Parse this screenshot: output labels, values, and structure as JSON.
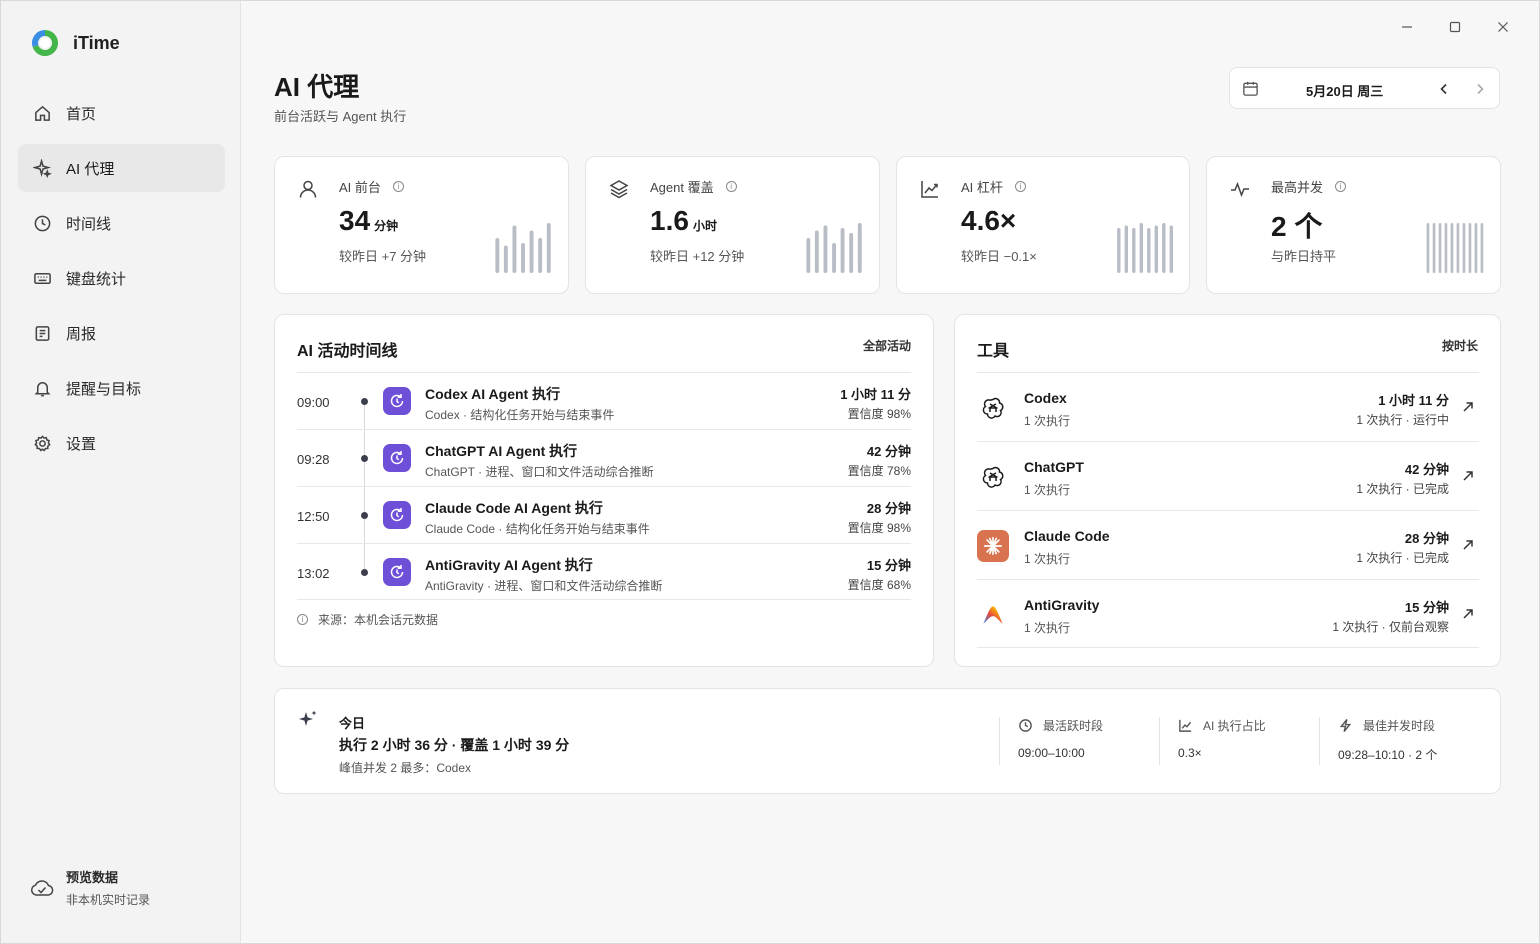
{
  "app": {
    "name": "iTime"
  },
  "sidebar": {
    "items": [
      {
        "label": "首页",
        "icon": "home-icon"
      },
      {
        "label": "AI 代理",
        "icon": "sparkle-icon",
        "active": true
      },
      {
        "label": "时间线",
        "icon": "clock-icon"
      },
      {
        "label": "键盘统计",
        "icon": "keyboard-icon"
      },
      {
        "label": "周报",
        "icon": "report-icon"
      },
      {
        "label": "提醒与目标",
        "icon": "bell-icon"
      },
      {
        "label": "设置",
        "icon": "gear-icon"
      }
    ],
    "footer": {
      "title": "预览数据",
      "subtitle": "非本机实时记录",
      "icon": "cloud-check-icon"
    }
  },
  "header": {
    "title": "AI 代理",
    "subtitle": "前台活跃与 Agent 执行",
    "date": "5月20日 周三"
  },
  "stats": [
    {
      "label": "AI 前台",
      "value": "34",
      "unit": "分钟",
      "delta": "较昨日 +7 分钟",
      "icon": "user-icon",
      "bars": [
        0.7,
        0.55,
        0.95,
        0.6,
        0.85,
        0.7,
        1.0
      ]
    },
    {
      "label": "Agent 覆盖",
      "value": "1.6",
      "unit": "小时",
      "delta": "较昨日 +12 分钟",
      "icon": "layers-icon",
      "bars": [
        0.7,
        0.85,
        0.95,
        0.6,
        0.9,
        0.8,
        1.0
      ]
    },
    {
      "label": "AI 杠杆",
      "value": "4.6×",
      "unit": "",
      "delta": "较昨日 −0.1×",
      "icon": "trend-icon",
      "bars": [
        0.9,
        0.95,
        0.9,
        1.0,
        0.9,
        0.95,
        1.0,
        0.95
      ]
    },
    {
      "label": "最高并发",
      "value": "2 个",
      "unit": "",
      "delta": "与昨日持平",
      "icon": "pulse-icon",
      "bars": [
        1,
        1,
        1,
        1,
        1,
        1,
        1,
        1,
        1,
        1
      ]
    }
  ],
  "timeline": {
    "title": "AI 活动时间线",
    "link": "全部活动",
    "items": [
      {
        "time": "09:00",
        "title": "Codex AI Agent 执行",
        "sub": "Codex · 结构化任务开始与结束事件",
        "duration": "1 小时 11 分",
        "confidence": "置信度 98%"
      },
      {
        "time": "09:28",
        "title": "ChatGPT AI Agent 执行",
        "sub": "ChatGPT · 进程、窗口和文件活动综合推断",
        "duration": "42 分钟",
        "confidence": "置信度 78%"
      },
      {
        "time": "12:50",
        "title": "Claude Code AI Agent 执行",
        "sub": "Claude Code · 结构化任务开始与结束事件",
        "duration": "28 分钟",
        "confidence": "置信度 98%"
      },
      {
        "time": "13:02",
        "title": "AntiGravity AI Agent 执行",
        "sub": "AntiGravity · 进程、窗口和文件活动综合推断",
        "duration": "15 分钟",
        "confidence": "置信度 68%"
      }
    ],
    "source": "来源：本机会话元数据"
  },
  "tools": {
    "title": "工具",
    "sort": "按时长",
    "items": [
      {
        "name": "Codex",
        "count": "1 次执行",
        "duration": "1 小时 11 分",
        "status": "1 次执行 · 运行中",
        "icon": "openai-icon"
      },
      {
        "name": "ChatGPT",
        "count": "1 次执行",
        "duration": "42 分钟",
        "status": "1 次执行 · 已完成",
        "icon": "openai-icon"
      },
      {
        "name": "Claude Code",
        "count": "1 次执行",
        "duration": "28 分钟",
        "status": "1 次执行 · 已完成",
        "icon": "claude-icon"
      },
      {
        "name": "AntiGravity",
        "count": "1 次执行",
        "duration": "15 分钟",
        "status": "1 次执行 · 仅前台观察",
        "icon": "antigravity-icon"
      }
    ]
  },
  "today": {
    "label": "今日",
    "main": "执行 2 小时 36 分 · 覆盖 1 小时 39 分",
    "sub": "峰值并发 2 最多：Codex",
    "metrics": [
      {
        "label": "最活跃时段",
        "value": "09:00–10:00",
        "icon": "clock-icon"
      },
      {
        "label": "AI 执行占比",
        "value": "0.3×",
        "icon": "trend-icon"
      },
      {
        "label": "最佳并发时段",
        "value": "09:28–10:10 · 2 个",
        "icon": "bolt-icon"
      }
    ]
  }
}
